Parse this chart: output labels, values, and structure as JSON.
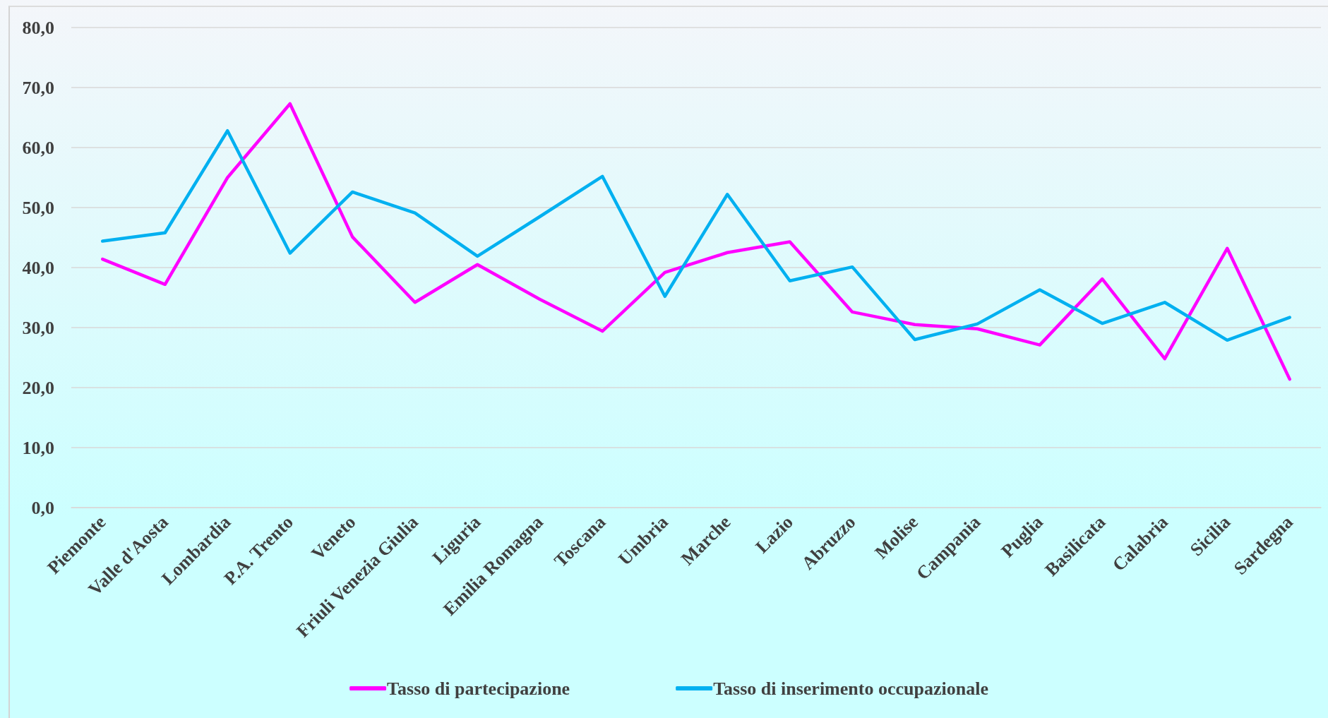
{
  "chart_data": {
    "type": "line",
    "categories": [
      "Piemonte",
      "Valle d'Aosta",
      "Lombardia",
      "P.A. Trento",
      "Veneto",
      "Friuli Venezia Giulia",
      "Liguria",
      "Emilia Romagna",
      "Toscana",
      "Umbria",
      "Marche",
      "Lazio",
      "Abruzzo",
      "Molise",
      "Campania",
      "Puglia",
      "Basilicata",
      "Calabria",
      "Sicilia",
      "Sardegna"
    ],
    "series": [
      {
        "name": "Tasso di partecipazione",
        "color": "#ff00ff",
        "values": [
          41.4,
          37.2,
          55.0,
          67.3,
          45.1,
          34.2,
          40.5,
          34.7,
          29.4,
          39.2,
          42.5,
          44.3,
          32.6,
          30.5,
          29.8,
          27.1,
          38.1,
          24.8,
          43.2,
          21.4
        ]
      },
      {
        "name": "Tasso di inserimento occupazionale",
        "color": "#00b0f0",
        "values": [
          44.4,
          45.8,
          62.8,
          42.4,
          52.6,
          49.1,
          41.9,
          48.5,
          55.2,
          35.2,
          52.2,
          37.8,
          40.1,
          28.0,
          30.6,
          36.3,
          30.7,
          34.2,
          27.9,
          31.7
        ]
      }
    ],
    "ylim": [
      0,
      80
    ],
    "yticks": [
      {
        "value": 0,
        "label": "0,0"
      },
      {
        "value": 10,
        "label": "10,0"
      },
      {
        "value": 20,
        "label": "20,0"
      },
      {
        "value": 30,
        "label": "30,0"
      },
      {
        "value": 40,
        "label": "40,0"
      },
      {
        "value": 50,
        "label": "50,0"
      },
      {
        "value": 60,
        "label": "60,0"
      },
      {
        "value": 70,
        "label": "70,0"
      },
      {
        "value": 80,
        "label": "80,0"
      }
    ],
    "grid": "y",
    "legend": "bottom",
    "marker": "none",
    "line_style": "solid"
  }
}
